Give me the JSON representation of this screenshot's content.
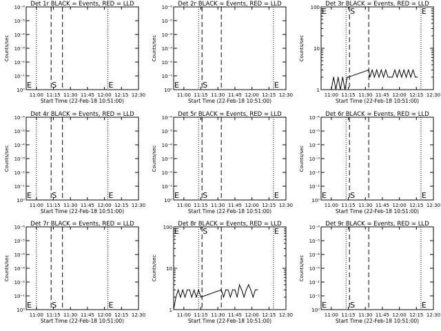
{
  "figure": {
    "background": "#ffffff",
    "foreground": "#000000"
  },
  "chart_data": [
    {
      "type": "line",
      "title": "Det 1r BLACK = Events, RED = LLD",
      "xlabel": "Start Time (22-Feb-18 10:51:00)",
      "ylabel": "Counts/sec",
      "yscale": "log",
      "xlim": [
        "10:51",
        "12:30"
      ],
      "xticks": [
        "11:00",
        "11:15",
        "11:30",
        "11:45",
        "12:00",
        "12:15",
        "12:30"
      ],
      "ylim": [
        0.9,
        1e-06
      ],
      "yticks": [
        "10⁰",
        "10⁻¹",
        "10⁻²",
        "10⁻³",
        "10⁻⁴",
        "10⁻⁵",
        "10⁻⁶"
      ],
      "dotted_lines": [
        "11:00",
        "12:03"
      ],
      "dashed_lines": [
        "11:13",
        "11:23"
      ],
      "markers": [
        {
          "label": "E",
          "x": "10:51"
        },
        {
          "label": "S",
          "x": "11:13"
        },
        {
          "label": "E",
          "x": "12:03"
        }
      ],
      "series": []
    },
    {
      "type": "line",
      "title": "Det 2r BLACK = Events, RED = LLD",
      "xlabel": "Start Time (22-Feb-18 10:51:00)",
      "ylabel": "Counts/sec",
      "yscale": "log",
      "xlim": [
        "10:51",
        "12:30"
      ],
      "xticks": [
        "11:00",
        "11:15",
        "11:30",
        "11:45",
        "12:00",
        "12:15",
        "12:30"
      ],
      "ylim": [
        0.9,
        1e-06
      ],
      "yticks": [
        "10⁰",
        "10⁻¹",
        "10⁻²",
        "10⁻³",
        "10⁻⁴",
        "10⁻⁵",
        "10⁻⁶"
      ],
      "dotted_lines": [
        "11:13",
        "12:19"
      ],
      "dashed_lines": [
        "11:16",
        "11:33"
      ],
      "markers": [
        {
          "label": "E",
          "x": "10:51"
        },
        {
          "label": "S",
          "x": "11:16"
        },
        {
          "label": "E",
          "x": "12:19"
        }
      ],
      "series": []
    },
    {
      "type": "line",
      "title": "Det 3r BLACK = Events, RED = LLD",
      "xlabel": "Start Time (22-Feb-18 10:51:00)",
      "ylabel": "Counts/sec",
      "yscale": "log",
      "xlim": [
        "10:51",
        "12:30"
      ],
      "xticks": [
        "11:00",
        "11:15",
        "11:30",
        "11:45",
        "12:00",
        "12:15",
        "12:30"
      ],
      "ylim": [
        1,
        100
      ],
      "yticks": [
        "1",
        "10",
        "100"
      ],
      "dotted_lines": [
        "11:13",
        "12:19"
      ],
      "dashed_lines": [
        "11:16",
        "11:33"
      ],
      "markers": [
        {
          "label": "E",
          "x": "10:51"
        },
        {
          "label": "S",
          "x": "11:16"
        },
        {
          "label": "E",
          "x": "12:19"
        }
      ],
      "series": [
        {
          "x": [
            "10:51",
            "10:54",
            "10:56",
            "10:58",
            "11:00",
            "11:02",
            "11:04",
            "11:06",
            "11:08",
            "11:10",
            "11:12",
            "11:14",
            "11:15",
            "11:33",
            "11:34",
            "11:36",
            "11:38",
            "11:40",
            "11:42",
            "11:44",
            "11:46",
            "11:48",
            "11:50",
            "11:52",
            "11:54",
            "11:56",
            "11:58",
            "12:00",
            "12:02",
            "12:04",
            "12:06",
            "12:08",
            "12:10",
            "12:12",
            "12:14",
            "12:16"
          ],
          "y": [
            1,
            1,
            1,
            1,
            1,
            2,
            1,
            2,
            1,
            2,
            1,
            2,
            2,
            3,
            2,
            3,
            2,
            3,
            2,
            3,
            2,
            3,
            2,
            2,
            2,
            3,
            2,
            3,
            2,
            3,
            2,
            3,
            2,
            3,
            2,
            2
          ]
        }
      ]
    },
    {
      "type": "line",
      "title": "Det 4r BLACK = Events, RED = LLD",
      "xlabel": "Start Time (22-Feb-18 10:51:00)",
      "ylabel": "Counts/sec",
      "yscale": "log",
      "xlim": [
        "10:51",
        "12:30"
      ],
      "xticks": [
        "11:00",
        "11:15",
        "11:30",
        "11:45",
        "12:00",
        "12:15",
        "12:30"
      ],
      "ylim": [
        0.9,
        1e-06
      ],
      "yticks": [
        "10⁰",
        "10⁻¹",
        "10⁻²",
        "10⁻³",
        "10⁻⁴",
        "10⁻⁵",
        "10⁻⁶"
      ],
      "dotted_lines": [
        "11:00",
        "12:03"
      ],
      "dashed_lines": [
        "11:13",
        "11:23"
      ],
      "markers": [
        {
          "label": "E",
          "x": "10:51"
        },
        {
          "label": "S",
          "x": "11:13"
        },
        {
          "label": "E",
          "x": "12:03"
        }
      ],
      "series": []
    },
    {
      "type": "line",
      "title": "Det 5r BLACK = Events, RED = LLD",
      "xlabel": "Start Time (22-Feb-18 10:51:00)",
      "ylabel": "Counts/sec",
      "yscale": "log",
      "xlim": [
        "10:51",
        "12:30"
      ],
      "xticks": [
        "11:00",
        "11:15",
        "11:30",
        "11:45",
        "12:00",
        "12:15",
        "12:30"
      ],
      "ylim": [
        0.9,
        1e-06
      ],
      "yticks": [
        "10⁰",
        "10⁻¹",
        "10⁻²",
        "10⁻³",
        "10⁻⁴",
        "10⁻⁵",
        "10⁻⁶"
      ],
      "dotted_lines": [
        "11:13",
        "12:19"
      ],
      "dashed_lines": [
        "11:16",
        "11:33"
      ],
      "markers": [
        {
          "label": "E",
          "x": "10:51"
        },
        {
          "label": "S",
          "x": "11:16"
        },
        {
          "label": "E",
          "x": "12:19"
        }
      ],
      "series": []
    },
    {
      "type": "line",
      "title": "Det 6r BLACK = Events, RED = LLD",
      "xlabel": "Start Time (22-Feb-18 10:51:00)",
      "ylabel": "Counts/sec",
      "yscale": "log",
      "xlim": [
        "10:51",
        "12:30"
      ],
      "xticks": [
        "11:00",
        "11:15",
        "11:30",
        "11:45",
        "12:00",
        "12:15",
        "12:30"
      ],
      "ylim": [
        0.9,
        1e-06
      ],
      "yticks": [
        "10⁰",
        "10⁻¹",
        "10⁻²",
        "10⁻³",
        "10⁻⁴",
        "10⁻⁵",
        "10⁻⁶"
      ],
      "dotted_lines": [
        "11:13",
        "12:19"
      ],
      "dashed_lines": [
        "11:16",
        "11:33"
      ],
      "markers": [
        {
          "label": "E",
          "x": "10:51"
        },
        {
          "label": "S",
          "x": "11:16"
        },
        {
          "label": "E",
          "x": "12:19"
        }
      ],
      "series": []
    },
    {
      "type": "line",
      "title": "Det 7r BLACK = Events, RED = LLD",
      "xlabel": "Start Time (22-Feb-18 10:51:00)",
      "ylabel": "Counts/sec",
      "yscale": "log",
      "xlim": [
        "10:51",
        "12:30"
      ],
      "xticks": [
        "11:00",
        "11:15",
        "11:30",
        "11:45",
        "12:00",
        "12:15",
        "12:30"
      ],
      "ylim": [
        0.9,
        1e-06
      ],
      "yticks": [
        "10⁰",
        "10⁻¹",
        "10⁻²",
        "10⁻³",
        "10⁻⁴",
        "10⁻⁵",
        "10⁻⁶"
      ],
      "dotted_lines": [
        "11:00",
        "12:03"
      ],
      "dashed_lines": [
        "11:13",
        "11:23"
      ],
      "markers": [
        {
          "label": "E",
          "x": "10:51"
        },
        {
          "label": "S",
          "x": "11:13"
        },
        {
          "label": "E",
          "x": "12:03"
        }
      ],
      "series": []
    },
    {
      "type": "line",
      "title": "Det 8r BLACK = Events, RED = LLD",
      "xlabel": "Start Time (22-Feb-18 10:51:00)",
      "ylabel": "Counts/sec",
      "yscale": "log",
      "xlim": [
        "10:51",
        "12:30"
      ],
      "xticks": [
        "11:00",
        "11:15",
        "11:30",
        "11:45",
        "12:00",
        "12:15",
        "12:30"
      ],
      "ylim": [
        1,
        100
      ],
      "yticks": [
        "1",
        "10",
        "100"
      ],
      "dotted_lines": [
        "11:13",
        "12:19"
      ],
      "dashed_lines": [
        "11:16",
        "11:33"
      ],
      "markers": [
        {
          "label": "E",
          "x": "10:51"
        },
        {
          "label": "S",
          "x": "11:16"
        },
        {
          "label": "E",
          "x": "12:19"
        }
      ],
      "series": [
        {
          "x": [
            "10:51",
            "10:53",
            "10:55",
            "10:57",
            "10:59",
            "11:01",
            "11:03",
            "11:05",
            "11:07",
            "11:09",
            "11:11",
            "11:13",
            "11:15",
            "11:33",
            "11:35",
            "11:37",
            "11:39",
            "11:41",
            "11:43",
            "11:45",
            "11:47",
            "11:49",
            "11:51",
            "11:53",
            "11:55",
            "11:57",
            "11:59",
            "12:01",
            "12:03",
            "12:05"
          ],
          "y": [
            1,
            2,
            3,
            2,
            3,
            2,
            3,
            3,
            2,
            3,
            2,
            3,
            2,
            3,
            2,
            3,
            3,
            2,
            3,
            3,
            2,
            4,
            3,
            2,
            3,
            4,
            3,
            2,
            3,
            3
          ]
        }
      ]
    },
    {
      "type": "line",
      "title": "Det 9r BLACK = Events, RED = LLD",
      "xlabel": "Start Time (22-Feb-18 10:51:00)",
      "ylabel": "Counts/sec",
      "yscale": "log",
      "xlim": [
        "10:51",
        "12:30"
      ],
      "xticks": [
        "11:00",
        "11:15",
        "11:30",
        "11:45",
        "12:00",
        "12:15",
        "12:30"
      ],
      "ylim": [
        0.9,
        1e-06
      ],
      "yticks": [
        "10⁰",
        "10⁻¹",
        "10⁻²",
        "10⁻³",
        "10⁻⁴",
        "10⁻⁵",
        "10⁻⁶"
      ],
      "dotted_lines": [
        "11:13",
        "12:19"
      ],
      "dashed_lines": [
        "11:16",
        "11:33"
      ],
      "markers": [
        {
          "label": "E",
          "x": "10:51"
        },
        {
          "label": "S",
          "x": "11:16"
        },
        {
          "label": "E",
          "x": "12:19"
        }
      ],
      "series": []
    }
  ]
}
